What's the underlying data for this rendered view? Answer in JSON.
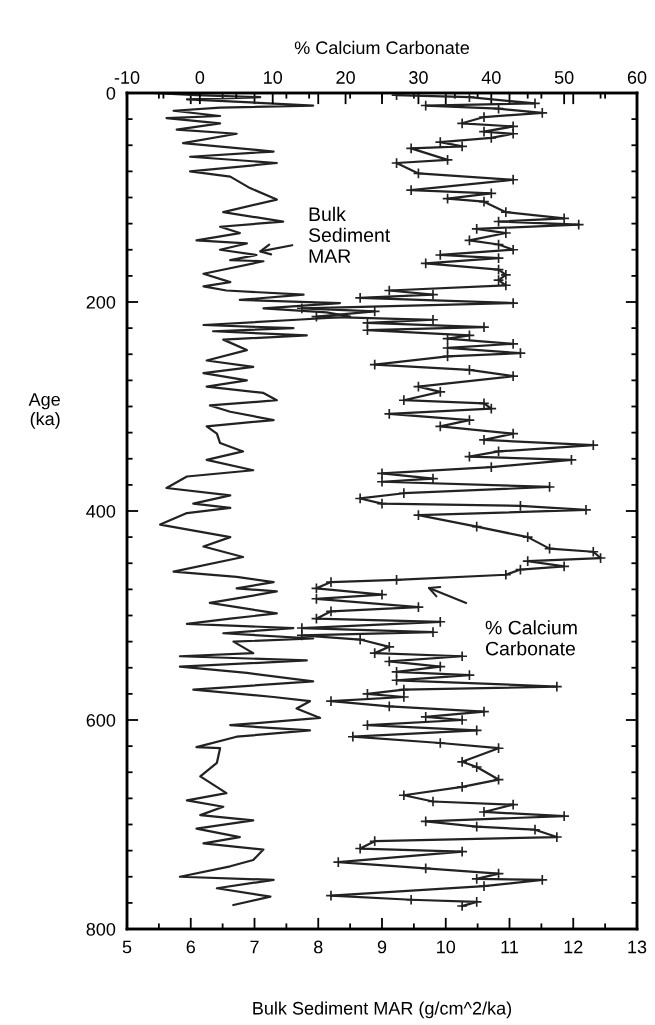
{
  "chart_data": {
    "type": "line",
    "xlabel": "Bulk Sediment MAR (g/cm^2/ka)",
    "ylabel": "Age\n(ka)",
    "x2label": "% Calcium Carbonate",
    "xlim": [
      5,
      13
    ],
    "xticks": [
      5,
      {
        "value": 5.5,
        "label": null
      },
      6,
      {
        "value": 6.5,
        "label": null
      },
      7,
      {
        "value": 7.5,
        "label": null
      },
      8,
      {
        "value": 8.5,
        "label": null
      },
      9,
      {
        "value": 9.5,
        "label": null
      },
      10,
      {
        "value": 10.5,
        "label": null
      },
      11,
      {
        "value": 11.5,
        "label": null
      },
      12,
      {
        "value": 12.5,
        "label": null
      },
      13
    ],
    "x2lim": [
      -10,
      60
    ],
    "x2ticks": [
      -10,
      {
        "value": -5,
        "label": null
      },
      0,
      {
        "value": 5,
        "label": null
      },
      10,
      {
        "value": 15,
        "label": null
      },
      20,
      {
        "value": 25,
        "label": null
      },
      30,
      {
        "value": 35,
        "label": null
      },
      40,
      {
        "value": 45,
        "label": null
      },
      50,
      {
        "value": 55,
        "label": null
      },
      60
    ],
    "ylim": [
      800,
      0
    ],
    "yticks": [
      0,
      {
        "value": 25,
        "label": null
      },
      {
        "value": 50,
        "label": null
      },
      {
        "value": 75,
        "label": null
      },
      {
        "value": 100,
        "label": null
      },
      {
        "value": 125,
        "label": null
      },
      {
        "value": 150,
        "label": null
      },
      {
        "value": 175,
        "label": null
      },
      200,
      {
        "value": 225,
        "label": null
      },
      {
        "value": 250,
        "label": null
      },
      {
        "value": 275,
        "label": null
      },
      {
        "value": 300,
        "label": null
      },
      {
        "value": 325,
        "label": null
      },
      {
        "value": 350,
        "label": null
      },
      {
        "value": 375,
        "label": null
      },
      400,
      {
        "value": 425,
        "label": null
      },
      {
        "value": 450,
        "label": null
      },
      {
        "value": 475,
        "label": null
      },
      {
        "value": 500,
        "label": null
      },
      {
        "value": 525,
        "label": null
      },
      {
        "value": 550,
        "label": null
      },
      {
        "value": 575,
        "label": null
      },
      600,
      {
        "value": 625,
        "label": null
      },
      {
        "value": 650,
        "label": null
      },
      {
        "value": 675,
        "label": null
      },
      {
        "value": 700,
        "label": null
      },
      {
        "value": 725,
        "label": null
      },
      {
        "value": 750,
        "label": null
      },
      {
        "value": 775,
        "label": null
      },
      800
    ],
    "grid": false,
    "series": [
      {
        "color": "#222222",
        "marker": "none",
        "x": [
          5.41,
          6.09,
          7.09,
          5.94,
          7.92,
          6.46,
          5.73,
          6.46,
          5.62,
          6.46,
          5.78,
          6.72,
          5.88,
          7.3,
          5.99,
          7.35,
          5.99,
          6.62,
          6.93,
          7.35,
          6.51,
          7.45,
          6.46,
          6.77,
          6.09,
          6.88,
          6.46,
          7.03,
          6.62,
          7.14,
          6.2,
          6.62,
          6.2,
          6.56,
          7.77,
          6.77,
          8.34,
          7.14,
          8.13,
          8.5,
          7.66,
          6.2,
          7.61,
          6.35,
          7.82,
          6.51,
          6.88,
          6.25,
          6.98,
          6.2,
          6.88,
          6.25,
          7.14,
          7.35,
          6.3,
          6.62,
          7.3,
          6.25,
          6.41,
          6.46,
          6.82,
          6.25,
          6.98,
          5.94,
          5.62,
          6.62,
          6.04,
          6.62,
          5.94,
          5.52,
          6.62,
          6.2,
          6.82,
          5.73,
          6.72,
          7.3,
          6.72,
          7.35,
          6.3,
          7.35,
          6.62,
          5.94,
          7.61,
          6.51,
          7.92,
          6.67,
          6.98,
          5.83,
          7.82,
          5.83,
          6.88,
          7.92,
          6.04,
          7.3,
          7.87,
          7.66,
          8.03,
          6.62,
          7.87,
          6.72,
          6.09,
          6.46,
          6.41,
          6.15,
          6.56,
          5.94,
          6.51,
          6.15,
          6.98,
          6.09,
          6.77,
          6.2,
          7.14,
          6.98,
          6.62,
          5.83,
          7.3,
          6.41,
          7.25,
          6.67
        ],
        "values": [
          0,
          2,
          4,
          6,
          12,
          14,
          17,
          22,
          24,
          29,
          35,
          39,
          48,
          56,
          61,
          67,
          75,
          80,
          91,
          102,
          114,
          123,
          128,
          134,
          141,
          144,
          150,
          155,
          160,
          161,
          173,
          181,
          185,
          189,
          193,
          198,
          201,
          206,
          210,
          214,
          217,
          222,
          225,
          228,
          232,
          236,
          246,
          256,
          262,
          268,
          275,
          281,
          287,
          294,
          299,
          305,
          313,
          319,
          326,
          335,
          343,
          351,
          361,
          367,
          378,
          385,
          393,
          397,
          402,
          413,
          425,
          434,
          444,
          458,
          463,
          468,
          474,
          477,
          488,
          498,
          503,
          508,
          512,
          517,
          522,
          525,
          536,
          539,
          543,
          549,
          555,
          563,
          571,
          578,
          582,
          589,
          598,
          605,
          610,
          616,
          626,
          627,
          641,
          654,
          670,
          677,
          683,
          691,
          696,
          704,
          712,
          718,
          724,
          734,
          740,
          750,
          753,
          761,
          769,
          777
        ]
      },
      {
        "color": "#222222",
        "marker": "cross",
        "axis": "x2",
        "x": [
          27,
          37,
          46,
          31,
          41,
          47,
          39,
          36,
          43,
          39,
          43,
          40,
          33,
          36,
          29,
          34,
          27,
          30,
          43,
          29,
          40,
          34,
          39,
          42,
          50,
          41,
          52,
          38,
          42,
          37,
          41,
          43,
          33,
          41,
          31,
          41,
          42,
          41,
          42,
          26,
          32,
          22,
          43,
          14,
          24,
          16,
          32,
          23,
          39,
          23,
          37,
          34,
          43,
          34,
          44,
          34,
          24,
          37,
          43,
          30,
          33,
          28,
          39,
          40,
          26,
          37,
          33,
          43,
          39,
          54,
          41,
          37,
          51,
          40,
          25,
          32,
          25,
          48,
          28,
          22,
          25,
          44,
          53,
          30,
          38,
          45,
          48,
          54,
          55,
          45,
          50,
          44,
          42,
          27,
          18,
          16,
          25,
          16,
          30,
          18,
          16,
          33,
          14,
          32,
          14,
          22,
          26,
          24,
          36,
          26,
          33,
          27,
          37,
          27,
          49,
          28,
          23,
          28,
          18,
          26,
          39,
          31,
          36,
          23,
          38,
          21,
          33,
          41,
          36,
          38,
          41,
          36,
          28,
          32,
          43,
          39,
          50,
          31,
          38,
          46,
          49,
          24,
          22,
          36,
          19,
          31,
          41,
          38,
          47,
          39,
          18,
          29,
          38,
          36
        ],
        "values": [
          2,
          4,
          10,
          12,
          15,
          19,
          23,
          29,
          32,
          37,
          39,
          43,
          47,
          51,
          53,
          64,
          67,
          77,
          83,
          93,
          96,
          101,
          104,
          114,
          120,
          123,
          126,
          130,
          134,
          141,
          145,
          150,
          155,
          158,
          163,
          169,
          174,
          179,
          184,
          189,
          193,
          196,
          201,
          206,
          209,
          214,
          217,
          220,
          224,
          227,
          232,
          235,
          240,
          244,
          249,
          252,
          260,
          265,
          271,
          281,
          286,
          294,
          297,
          302,
          307,
          313,
          319,
          326,
          332,
          337,
          343,
          348,
          351,
          358,
          364,
          369,
          372,
          377,
          383,
          388,
          393,
          395,
          399,
          404,
          415,
          425,
          436,
          439,
          445,
          448,
          453,
          456,
          461,
          466,
          468,
          474,
          480,
          484,
          492,
          496,
          503,
          506,
          512,
          516,
          519,
          523,
          530,
          536,
          539,
          544,
          549,
          554,
          557,
          562,
          568,
          571,
          575,
          578,
          582,
          587,
          592,
          597,
          600,
          605,
          610,
          616,
          622,
          627,
          640,
          645,
          657,
          664,
          672,
          678,
          681,
          688,
          692,
          697,
          702,
          705,
          712,
          716,
          723,
          726,
          736,
          742,
          747,
          752,
          753,
          759,
          768,
          772,
          774,
          778
        ]
      }
    ],
    "annotations": [
      "Bulk\nSediment\nMAR",
      "% Calcium\nCarbonate"
    ]
  }
}
